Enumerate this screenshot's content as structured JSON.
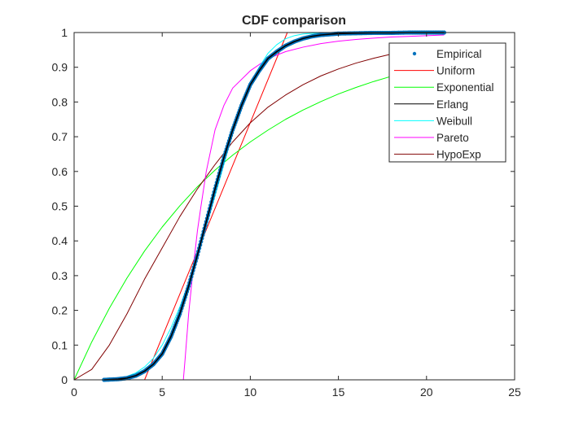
{
  "chart_data": {
    "type": "line",
    "title": "CDF comparison",
    "xlabel": "",
    "ylabel": "",
    "xlim": [
      0,
      25
    ],
    "ylim": [
      0,
      1
    ],
    "xticks": [
      0,
      5,
      10,
      15,
      20,
      25
    ],
    "yticks": [
      0,
      0.1,
      0.2,
      0.3,
      0.4,
      0.5,
      0.6,
      0.7,
      0.8,
      0.9,
      1
    ],
    "xtick_labels": [
      "0",
      "5",
      "10",
      "15",
      "20",
      "25"
    ],
    "ytick_labels": [
      "0",
      "0.1",
      "0.2",
      "0.3",
      "0.4",
      "0.5",
      "0.6",
      "0.7",
      "0.8",
      "0.9",
      "1"
    ],
    "grid": false,
    "box": true,
    "legend": {
      "position": "top-right"
    },
    "series": [
      {
        "name": "Empirical",
        "style": "points",
        "color": "#0072bd",
        "x": [
          1.7,
          2.5,
          3.0,
          3.5,
          4.0,
          4.5,
          5.0,
          5.5,
          6.0,
          6.5,
          7.0,
          7.5,
          8.0,
          8.5,
          9.0,
          9.5,
          10.0,
          10.5,
          11.0,
          11.5,
          12.0,
          12.5,
          13.0,
          13.5,
          14.0,
          14.5,
          15.0,
          16.0,
          17.0,
          18.0,
          19.0,
          20.0,
          21.0
        ],
        "y": [
          0.0,
          0.002,
          0.005,
          0.012,
          0.025,
          0.045,
          0.075,
          0.125,
          0.19,
          0.27,
          0.36,
          0.455,
          0.55,
          0.64,
          0.72,
          0.79,
          0.85,
          0.89,
          0.925,
          0.945,
          0.962,
          0.974,
          0.983,
          0.989,
          0.993,
          0.995,
          0.997,
          0.998,
          0.999,
          0.999,
          1.0,
          1.0,
          1.0
        ]
      },
      {
        "name": "Uniform",
        "style": "line",
        "color": "#ff0000",
        "x": [
          0,
          4.0,
          12.1,
          21.0
        ],
        "y": [
          0,
          0,
          1,
          1
        ]
      },
      {
        "name": "Exponential",
        "style": "line",
        "color": "#00ff00",
        "x": [
          0,
          1,
          2,
          3,
          4,
          5,
          6,
          7,
          8,
          9,
          10,
          11,
          12,
          13,
          14,
          15,
          16,
          17,
          18,
          19,
          20,
          21
        ],
        "y": [
          0,
          0.109,
          0.206,
          0.293,
          0.371,
          0.44,
          0.501,
          0.556,
          0.604,
          0.647,
          0.685,
          0.719,
          0.75,
          0.777,
          0.801,
          0.823,
          0.842,
          0.859,
          0.874,
          0.888,
          0.9,
          0.911
        ]
      },
      {
        "name": "Erlang",
        "style": "line",
        "color": "#000000",
        "x": [
          1.7,
          2.5,
          3.0,
          3.5,
          4.0,
          4.5,
          5.0,
          5.5,
          6.0,
          6.5,
          7.0,
          7.5,
          8.0,
          8.5,
          9.0,
          9.5,
          10.0,
          10.5,
          11.0,
          11.5,
          12.0,
          12.5,
          13.0,
          13.5,
          14.0,
          14.5,
          15.0,
          16.0,
          17.0,
          18.0,
          19.0,
          20.0,
          21.0
        ],
        "y": [
          0.0,
          0.002,
          0.005,
          0.012,
          0.025,
          0.045,
          0.075,
          0.125,
          0.19,
          0.27,
          0.36,
          0.455,
          0.55,
          0.64,
          0.72,
          0.79,
          0.85,
          0.89,
          0.925,
          0.945,
          0.962,
          0.974,
          0.983,
          0.989,
          0.993,
          0.995,
          0.997,
          0.998,
          0.999,
          0.999,
          1.0,
          1.0,
          1.0
        ]
      },
      {
        "name": "Weibull",
        "style": "line",
        "color": "#00ffff",
        "x": [
          1.7,
          2.5,
          3.0,
          3.5,
          4.0,
          4.5,
          5.0,
          5.5,
          6.0,
          6.5,
          7.0,
          7.5,
          8.0,
          8.5,
          9.0,
          9.5,
          10.0,
          10.5,
          11.0,
          11.5,
          12.0,
          12.5,
          13.0,
          14.0,
          15.0,
          16.0,
          17.0,
          18.0,
          19.0,
          20.0,
          21.0
        ],
        "y": [
          0.0,
          0.004,
          0.01,
          0.02,
          0.037,
          0.062,
          0.1,
          0.15,
          0.21,
          0.28,
          0.36,
          0.44,
          0.53,
          0.62,
          0.71,
          0.785,
          0.85,
          0.9,
          0.94,
          0.965,
          0.982,
          0.991,
          0.996,
          0.999,
          1.0,
          1.0,
          1.0,
          1.0,
          1.0,
          1.0,
          1.0
        ]
      },
      {
        "name": "Pareto",
        "style": "line",
        "color": "#ff00ff",
        "x": [
          1.7,
          6.2,
          6.3,
          6.5,
          6.8,
          7.0,
          7.2,
          7.5,
          8.0,
          8.5,
          9.0,
          10.0,
          11.0,
          12.0,
          13.0,
          14.0,
          15.0,
          16.0,
          17.0,
          18.0,
          19.0,
          20.0,
          21.0
        ],
        "y": [
          0,
          0,
          0.06,
          0.19,
          0.34,
          0.43,
          0.5,
          0.6,
          0.72,
          0.79,
          0.84,
          0.89,
          0.925,
          0.945,
          0.958,
          0.968,
          0.975,
          0.98,
          0.984,
          0.987,
          0.989,
          0.991,
          0.993
        ]
      },
      {
        "name": "HypoExp",
        "style": "line",
        "color": "#800000",
        "x": [
          0,
          1,
          2,
          3,
          4,
          5,
          6,
          7,
          8,
          9,
          10,
          11,
          12,
          13,
          14,
          15,
          16,
          17,
          18,
          19,
          20,
          21
        ],
        "y": [
          0,
          0.03,
          0.1,
          0.19,
          0.29,
          0.38,
          0.47,
          0.55,
          0.62,
          0.685,
          0.74,
          0.785,
          0.82,
          0.85,
          0.875,
          0.895,
          0.912,
          0.926,
          0.938,
          0.948,
          0.956,
          0.963
        ]
      }
    ]
  }
}
